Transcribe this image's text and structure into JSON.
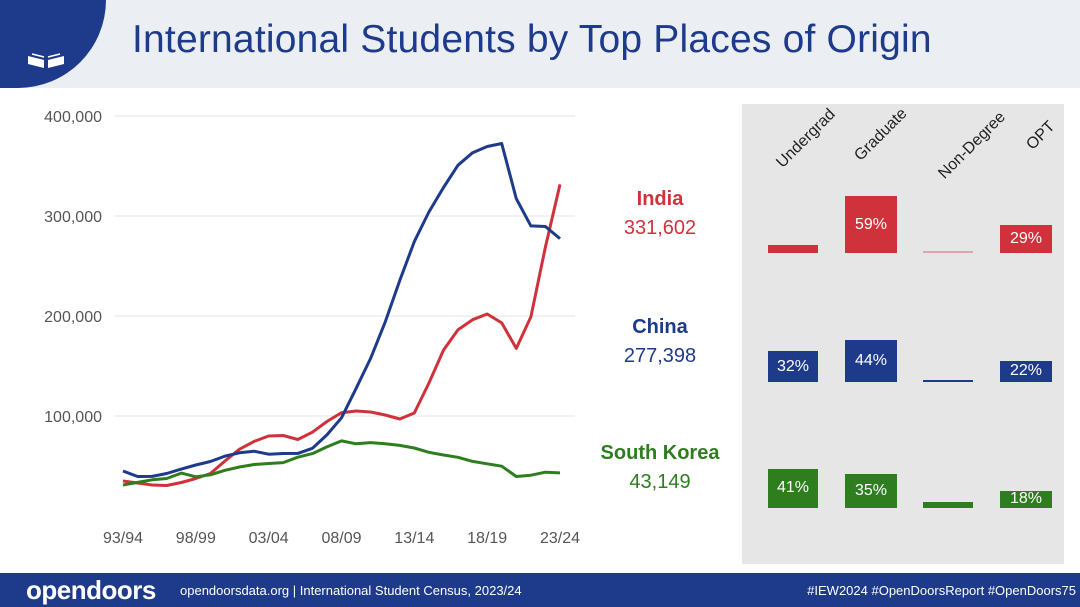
{
  "header": {
    "title": "International Students by Top Places of Origin"
  },
  "chart_data": {
    "type": "line",
    "title": "International Students by Top Places of Origin",
    "x": [
      "93/94",
      "94/95",
      "95/96",
      "96/97",
      "97/98",
      "98/99",
      "99/00",
      "00/01",
      "01/02",
      "02/03",
      "03/04",
      "04/05",
      "05/06",
      "06/07",
      "07/08",
      "08/09",
      "09/10",
      "10/11",
      "11/12",
      "12/13",
      "13/14",
      "14/15",
      "15/16",
      "16/17",
      "17/18",
      "18/19",
      "19/20",
      "20/21",
      "21/22",
      "22/23",
      "23/24"
    ],
    "xticks": [
      "93/94",
      "98/99",
      "03/04",
      "08/09",
      "13/14",
      "18/19",
      "23/24"
    ],
    "ylim": [
      0,
      400000
    ],
    "yticks": [
      "400,000",
      "300,000",
      "200,000",
      "100,000"
    ],
    "yticks_values": [
      400000,
      300000,
      200000,
      100000
    ],
    "grid": true,
    "series": [
      {
        "name": "India",
        "color": "#d0323c",
        "values": [
          35000,
          33000,
          31000,
          30500,
          33500,
          37500,
          42500,
          55000,
          66800,
          74600,
          80000,
          80500,
          76500,
          83800,
          94500,
          103300,
          105000,
          104000,
          101000,
          97000,
          103000,
          132900,
          165900,
          186300,
          196300,
          202000,
          193100,
          167600,
          199200,
          268900,
          331602
        ]
      },
      {
        "name": "China",
        "color": "#1e3a8a",
        "values": [
          45000,
          39500,
          39600,
          42500,
          46900,
          51000,
          54500,
          59900,
          63200,
          64800,
          61800,
          62500,
          62600,
          67700,
          81100,
          98200,
          127600,
          157600,
          194000,
          235600,
          274400,
          304000,
          328500,
          350800,
          363300,
          369500,
          372500,
          317300,
          290100,
          289500,
          277398
        ]
      },
      {
        "name": "South Korea",
        "color": "#2e7d1f",
        "values": [
          31000,
          33600,
          36200,
          37500,
          42900,
          39200,
          41200,
          45700,
          49000,
          51500,
          52500,
          53400,
          58800,
          62400,
          69100,
          75100,
          72200,
          73400,
          72300,
          70600,
          68000,
          63700,
          61000,
          58700,
          54600,
          52200,
          49800,
          39500,
          40800,
          43800,
          43149
        ]
      }
    ],
    "labels": [
      {
        "name": "India",
        "count": "331,602",
        "color": "#d0323c"
      },
      {
        "name": "China",
        "count": "277,398",
        "color": "#1e3a8a"
      },
      {
        "name": "South Korea",
        "count": "43,149",
        "color": "#2e7d1f"
      }
    ],
    "breakdown": {
      "columns": [
        "Undergrad",
        "Graduate",
        "Non-Degree",
        "OPT"
      ],
      "rows": [
        {
          "country": "India",
          "color": "#d0323c",
          "values": [
            8,
            59,
            1,
            29
          ],
          "labels": [
            "",
            "59%",
            "",
            "29%"
          ]
        },
        {
          "country": "China",
          "color": "#1e3a8a",
          "values": [
            32,
            44,
            2,
            22
          ],
          "labels": [
            "32%",
            "44%",
            "",
            "22%"
          ]
        },
        {
          "country": "South Korea",
          "color": "#2e7d1f",
          "values": [
            41,
            35,
            6,
            18
          ],
          "labels": [
            "41%",
            "35%",
            "",
            "18%"
          ]
        }
      ]
    }
  },
  "footer": {
    "brand": "opendoors",
    "source": "opendoorsdata.org  |  International Student Census, 2023/24",
    "tags": "#IEW2024  #OpenDoorsReport  #OpenDoors75"
  }
}
